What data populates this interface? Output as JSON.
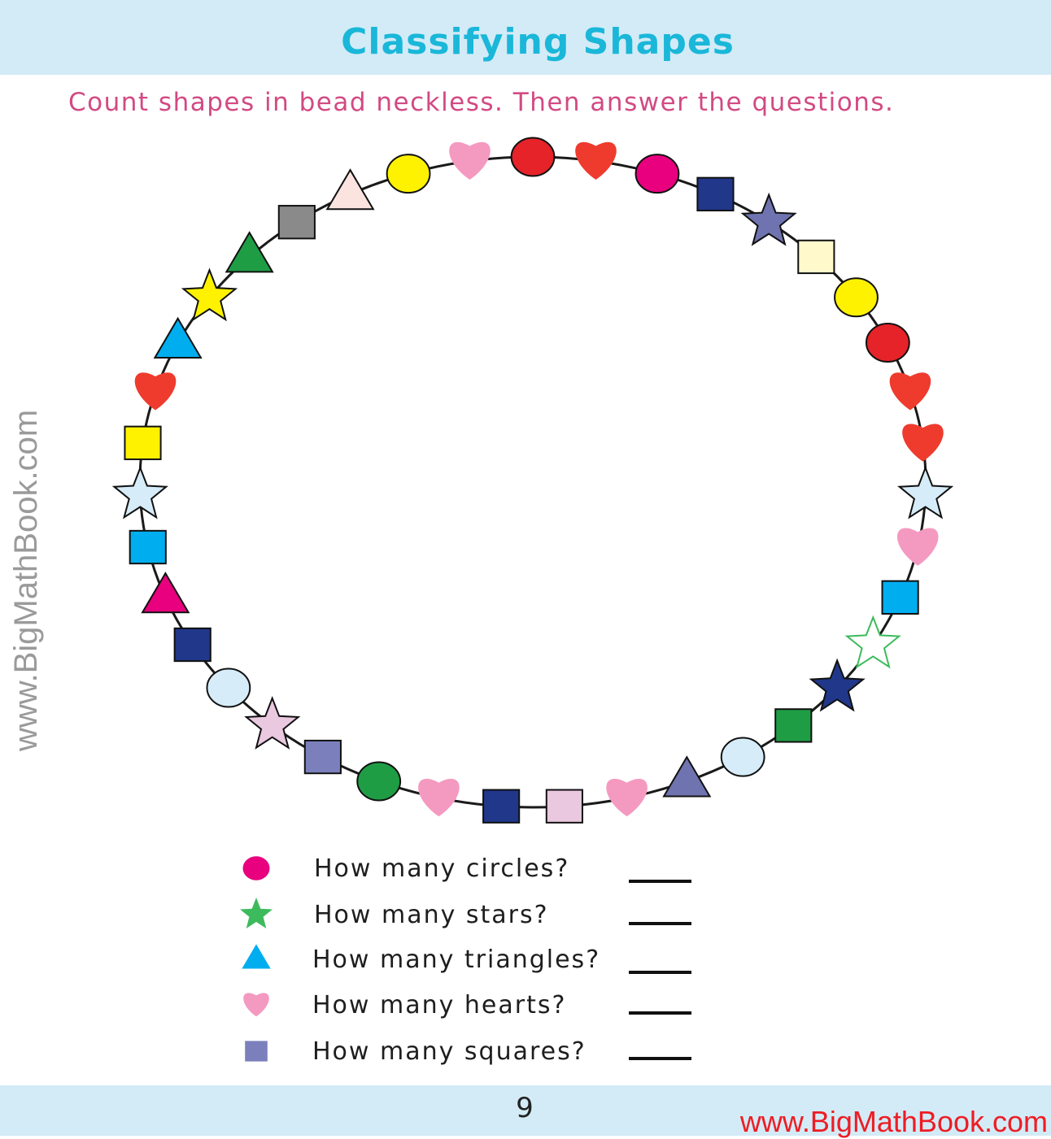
{
  "header": {
    "title": "Classifying Shapes"
  },
  "instructions": "Count shapes in bead neckless. Then answer the questions.",
  "side_watermark": "www.BigMathBook.com",
  "necklace": {
    "string_color": "#1a1a1a",
    "beads": [
      {
        "shape": "circle",
        "color": "#e52329"
      },
      {
        "shape": "heart",
        "color": "#ee3b2d"
      },
      {
        "shape": "circle",
        "color": "#e8007f"
      },
      {
        "shape": "square",
        "color": "#21378a"
      },
      {
        "shape": "star",
        "color": "#6f74b0"
      },
      {
        "shape": "square",
        "color": "#fff9cc"
      },
      {
        "shape": "circle",
        "color": "#fff200"
      },
      {
        "shape": "circle",
        "color": "#e52329"
      },
      {
        "shape": "heart",
        "color": "#ee3b2d"
      },
      {
        "shape": "heart",
        "color": "#ee3b2d"
      },
      {
        "shape": "star",
        "color": "#d6ecf8"
      },
      {
        "shape": "heart",
        "color": "#f49ac1"
      },
      {
        "shape": "square",
        "color": "#00aeef"
      },
      {
        "shape": "star",
        "color": "#ffffff",
        "stroke": "#3dbb5c"
      },
      {
        "shape": "star",
        "color": "#21378a"
      },
      {
        "shape": "square",
        "color": "#1f9d45"
      },
      {
        "shape": "circle",
        "color": "#d6ecf8"
      },
      {
        "shape": "triangle",
        "color": "#6f74b0"
      },
      {
        "shape": "heart",
        "color": "#f49ac1"
      },
      {
        "shape": "square",
        "color": "#e9c8e0"
      },
      {
        "shape": "square",
        "color": "#21378a"
      },
      {
        "shape": "heart",
        "color": "#f49ac1"
      },
      {
        "shape": "circle",
        "color": "#1f9d45"
      },
      {
        "shape": "square",
        "color": "#7b80bd"
      },
      {
        "shape": "star",
        "color": "#e9c8e0"
      },
      {
        "shape": "circle",
        "color": "#d6ecf8"
      },
      {
        "shape": "square",
        "color": "#21378a"
      },
      {
        "shape": "triangle",
        "color": "#e8007f"
      },
      {
        "shape": "square",
        "color": "#00aeef"
      },
      {
        "shape": "star",
        "color": "#d6ecf8"
      },
      {
        "shape": "square",
        "color": "#fff200"
      },
      {
        "shape": "heart",
        "color": "#ee3b2d"
      },
      {
        "shape": "triangle",
        "color": "#00aeef"
      },
      {
        "shape": "star",
        "color": "#fff200"
      },
      {
        "shape": "triangle",
        "color": "#1f9d45"
      },
      {
        "shape": "square",
        "color": "#8a8a8a"
      },
      {
        "shape": "triangle",
        "color": "#fbe3df"
      },
      {
        "shape": "circle",
        "color": "#fff200"
      },
      {
        "shape": "heart",
        "color": "#f49ac1"
      }
    ]
  },
  "questions": [
    {
      "icon": "circle",
      "icon_color": "#e8007f",
      "text": "How many circles?"
    },
    {
      "icon": "star",
      "icon_color": "#3dbb5c",
      "text": "How many stars?"
    },
    {
      "icon": "triangle",
      "icon_color": "#00aeef",
      "text": "How many triangles?"
    },
    {
      "icon": "heart",
      "icon_color": "#f49ac1",
      "text": "How many hearts?"
    },
    {
      "icon": "square",
      "icon_color": "#7b80bd",
      "text": "How many squares?"
    }
  ],
  "footer": {
    "page_number": "9",
    "url": "www.BigMathBook.com"
  }
}
